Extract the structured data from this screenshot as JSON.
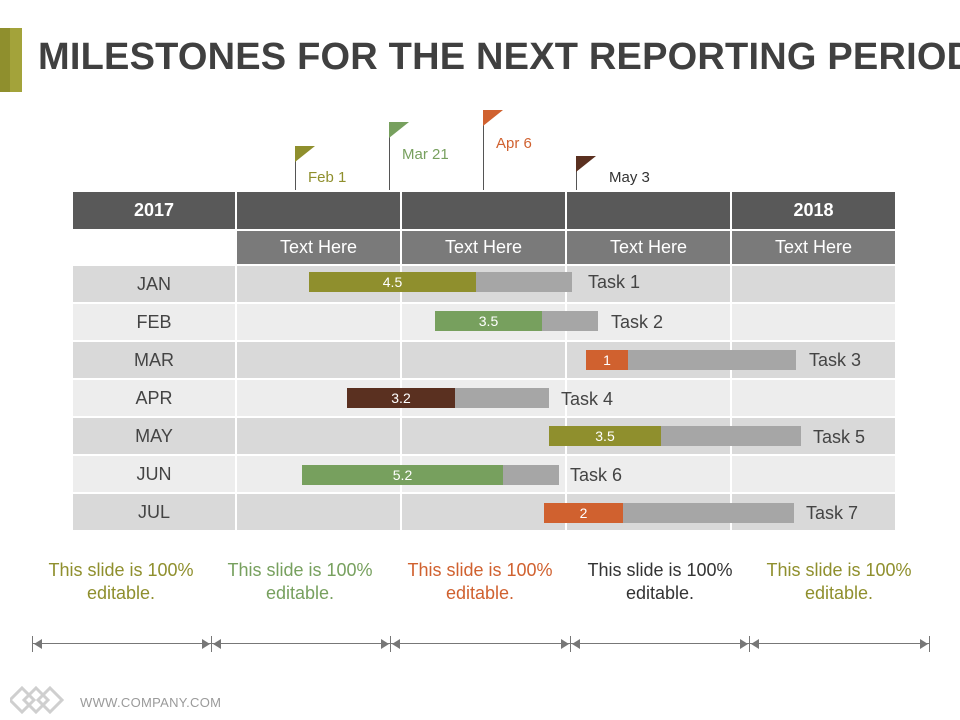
{
  "title": "MILESTONES FOR THE NEXT REPORTING PERIOD",
  "milestones": [
    {
      "label": "Feb 1",
      "color": "#8f8f2d"
    },
    {
      "label": "Mar 21",
      "color": "#77a05e"
    },
    {
      "label": "Apr 6",
      "color": "#d0612f"
    },
    {
      "label": "May 3",
      "color": "#5a3020"
    }
  ],
  "table": {
    "year_start": "2017",
    "year_end": "2018",
    "columns": [
      "Text Here",
      "Text Here",
      "Text Here",
      "Text Here"
    ],
    "months": [
      "JAN",
      "FEB",
      "MAR",
      "APR",
      "MAY",
      "JUN",
      "JUL"
    ]
  },
  "tasks": [
    {
      "name": "Task 1",
      "value": "4.5",
      "color": "#8f8f2d"
    },
    {
      "name": "Task 2",
      "value": "3.5",
      "color": "#77a05e"
    },
    {
      "name": "Task 3",
      "value": "1",
      "color": "#d0612f"
    },
    {
      "name": "Task 4",
      "value": "3.2",
      "color": "#5a3020"
    },
    {
      "name": "Task 5",
      "value": "3.5",
      "color": "#8f8f2d"
    },
    {
      "name": "Task 6",
      "value": "5.2",
      "color": "#77a05e"
    },
    {
      "name": "Task 7",
      "value": "2",
      "color": "#d0612f"
    }
  ],
  "notes": [
    {
      "text": "This slide is 100% editable.",
      "color": "#8f8f2d"
    },
    {
      "text": "This slide is 100% editable.",
      "color": "#77a05e"
    },
    {
      "text": "This slide is 100% editable.",
      "color": "#d0612f"
    },
    {
      "text": "This slide is 100% editable.",
      "color": "#333333"
    },
    {
      "text": "This slide is 100% editable.",
      "color": "#8f8f2d"
    }
  ],
  "footer": "WWW.COMPANY.COM"
}
